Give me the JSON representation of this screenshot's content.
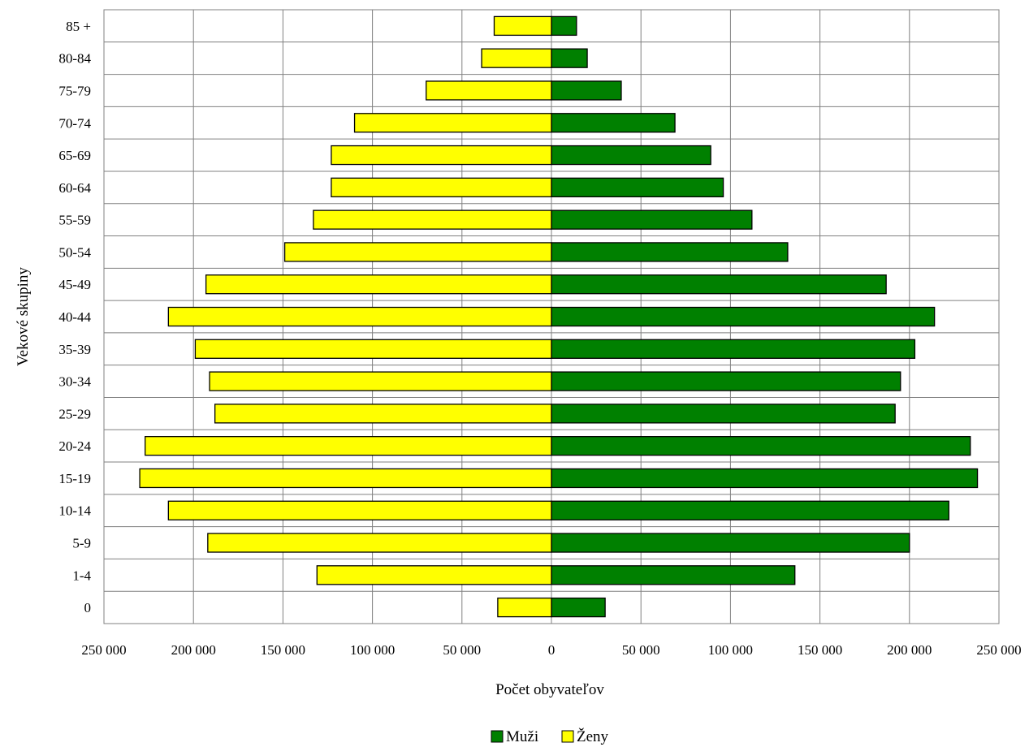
{
  "chart_data": {
    "type": "bar",
    "orientation": "horizontal",
    "layout": "population-pyramid",
    "categories": [
      "0",
      "1-4",
      "5-9",
      "10-14",
      "15-19",
      "20-24",
      "25-29",
      "30-34",
      "35-39",
      "40-44",
      "45-49",
      "50-54",
      "55-59",
      "60-64",
      "65-69",
      "70-74",
      "75-79",
      "80-84",
      "85 +"
    ],
    "series": [
      {
        "name": "Muži",
        "side": "right",
        "color": "#008000",
        "values": [
          30000,
          136000,
          200000,
          222000,
          238000,
          234000,
          192000,
          195000,
          203000,
          214000,
          187000,
          132000,
          112000,
          96000,
          89000,
          69000,
          39000,
          20000,
          14000
        ]
      },
      {
        "name": "Ženy",
        "side": "left",
        "color": "#ffff00",
        "values": [
          30000,
          131000,
          192000,
          214000,
          230000,
          227000,
          188000,
          191000,
          199000,
          214000,
          193000,
          149000,
          133000,
          123000,
          123000,
          110000,
          70000,
          39000,
          32000
        ]
      }
    ],
    "xlim": [
      -250000,
      250000
    ],
    "x_ticks": [
      -250000,
      -200000,
      -150000,
      -100000,
      -50000,
      0,
      50000,
      100000,
      150000,
      200000,
      250000
    ],
    "x_tick_labels": [
      "250 000",
      "200 000",
      "150 000",
      "100 000",
      "50 000",
      "0",
      "50 000",
      "100 000",
      "150 000",
      "200 000",
      "250 000"
    ],
    "xlabel": "Počet obyvateľov",
    "ylabel": "Vekové skupiny",
    "title": "",
    "grid": true,
    "legend_position": "bottom-center",
    "bar_outline_color": "#000000"
  }
}
